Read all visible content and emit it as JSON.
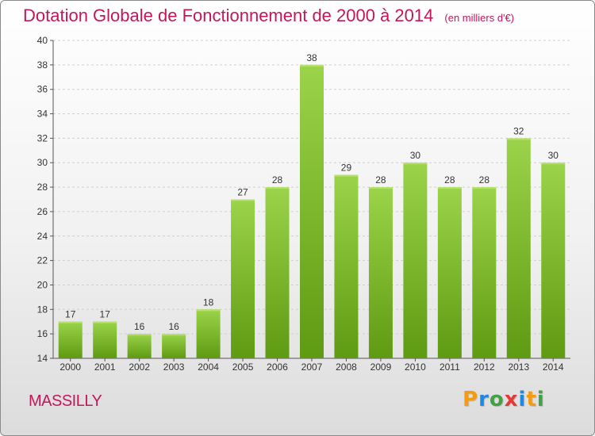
{
  "title": "Dotation Globale de Fonctionnement de 2000 à 2014",
  "unit_note": "(en milliers d'€)",
  "commune": "MASSILLY",
  "logo": {
    "text": "Proxiti",
    "letters": [
      {
        "ch": "P",
        "color": "#f39c12"
      },
      {
        "ch": "r",
        "color": "#1e88e5"
      },
      {
        "ch": "o",
        "color": "#43a047"
      },
      {
        "ch": "x",
        "color": "#e53935"
      },
      {
        "ch": "i",
        "color": "#1e88e5"
      },
      {
        "ch": "t",
        "color": "#f39c12"
      },
      {
        "ch": "i",
        "color": "#43a047"
      }
    ]
  },
  "colors": {
    "title": "#c2185b",
    "bar_top": "#9bd44a",
    "bar_bottom": "#5e9a12",
    "grid": "#d0d0d0"
  },
  "chart_data": {
    "type": "bar",
    "categories": [
      "2000",
      "2001",
      "2002",
      "2003",
      "2004",
      "2005",
      "2006",
      "2007",
      "2008",
      "2009",
      "2010",
      "2011",
      "2012",
      "2013",
      "2014"
    ],
    "values": [
      17,
      17,
      16,
      16,
      18,
      27,
      28,
      38,
      29,
      28,
      30,
      28,
      28,
      32,
      30
    ],
    "ylim": [
      14,
      40
    ],
    "yticks": [
      14,
      16,
      18,
      20,
      22,
      24,
      26,
      28,
      30,
      32,
      34,
      36,
      38,
      40
    ],
    "grid": true
  }
}
